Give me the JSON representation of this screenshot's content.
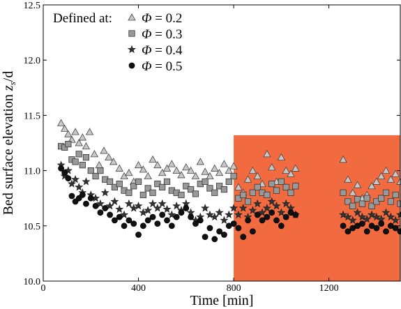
{
  "chart_data": {
    "type": "scatter",
    "xlabel": "Time [min]",
    "ylabel": "Bed surface elevation z_s/d",
    "ylabel_parts": {
      "main": "Bed surface elevation ",
      "var": "z",
      "sub": "s",
      "tail": "/d"
    },
    "xlim": [
      0,
      1500
    ],
    "ylim": [
      10.0,
      12.5
    ],
    "xticks": [
      "0",
      "400",
      "800",
      "1200"
    ],
    "yticks": [
      "10.0",
      "10.5",
      "11.0",
      "11.5",
      "12.0",
      "12.5"
    ],
    "grid": false,
    "legend_position": "top-left",
    "legend_title": "Defined at:",
    "highlight_region": {
      "x": [
        800,
        1500
      ],
      "y": [
        10.0,
        11.32
      ],
      "color": "#f26a3f"
    },
    "series": [
      {
        "name": "Φ = 0.2",
        "symbol_var": "Φ",
        "symbol_val": " = 0.2",
        "marker": "triangle",
        "color": "#c8c8c8",
        "stroke": "#444444",
        "x": [
          75,
          90,
          105,
          120,
          135,
          150,
          165,
          180,
          195,
          215,
          235,
          255,
          275,
          295,
          320,
          340,
          360,
          380,
          400,
          420,
          440,
          460,
          480,
          500,
          520,
          540,
          560,
          580,
          600,
          620,
          640,
          660,
          680,
          700,
          720,
          740,
          760,
          780,
          800,
          820,
          840,
          860,
          880,
          900,
          920,
          940,
          960,
          980,
          1000,
          1020,
          1040,
          1060,
          1260,
          1280,
          1300,
          1320,
          1340,
          1360,
          1380,
          1400,
          1420,
          1440,
          1460,
          1480,
          1500
        ],
        "y": [
          11.43,
          11.38,
          11.33,
          11.28,
          11.35,
          11.25,
          11.3,
          11.22,
          11.35,
          11.15,
          11.05,
          11.18,
          11.12,
          11.08,
          11.02,
          10.95,
          10.98,
          10.9,
          11.05,
          11.01,
          10.95,
          11.1,
          11.05,
          10.98,
          11.02,
          11.06,
          11.0,
          10.96,
          11.03,
          11.0,
          10.95,
          11.08,
          10.99,
          10.95,
          11.02,
          10.98,
          11.06,
          11.0,
          11.04,
          10.85,
          10.8,
          10.92,
          11.0,
          10.95,
          10.88,
          11.15,
          11.03,
          10.9,
          11.12,
          11.0,
          10.97,
          11.02,
          11.1,
          10.92,
          10.8,
          10.87,
          10.75,
          10.78,
          10.86,
          10.9,
          10.95,
          11.0,
          10.92,
          10.97,
          10.9
        ]
      },
      {
        "name": "Φ = 0.3",
        "symbol_var": "Φ",
        "symbol_val": " = 0.3",
        "marker": "square",
        "color": "#999999",
        "stroke": "#333333",
        "x": [
          75,
          90,
          105,
          120,
          135,
          150,
          165,
          180,
          200,
          220,
          240,
          260,
          280,
          300,
          320,
          340,
          360,
          380,
          400,
          420,
          440,
          460,
          480,
          500,
          520,
          540,
          560,
          580,
          600,
          620,
          640,
          660,
          680,
          700,
          720,
          740,
          760,
          780,
          800,
          820,
          840,
          860,
          880,
          900,
          920,
          940,
          960,
          980,
          1000,
          1020,
          1040,
          1060,
          1260,
          1280,
          1300,
          1320,
          1340,
          1360,
          1380,
          1400,
          1420,
          1440,
          1460,
          1480,
          1500
        ],
        "y": [
          11.22,
          11.21,
          11.24,
          11.1,
          11.08,
          11.15,
          11.05,
          11.12,
          11.0,
          10.95,
          11.0,
          10.92,
          10.9,
          10.85,
          10.88,
          10.82,
          10.8,
          10.86,
          10.9,
          10.78,
          10.84,
          10.8,
          10.88,
          10.85,
          10.9,
          10.82,
          10.8,
          10.78,
          10.86,
          10.83,
          10.79,
          10.88,
          10.9,
          10.84,
          10.8,
          10.86,
          10.83,
          10.9,
          10.95,
          10.75,
          10.78,
          10.72,
          10.8,
          10.85,
          10.8,
          10.78,
          10.88,
          10.82,
          10.9,
          10.85,
          10.8,
          10.86,
          10.8,
          10.72,
          10.68,
          10.74,
          10.7,
          10.75,
          10.68,
          10.72,
          10.75,
          10.8,
          10.72,
          10.78,
          10.7
        ]
      },
      {
        "name": "Φ = 0.4",
        "symbol_var": "Φ",
        "symbol_val": " = 0.4",
        "marker": "star",
        "color": "#333333",
        "stroke": "#222222",
        "x": [
          75,
          90,
          105,
          120,
          135,
          150,
          165,
          180,
          200,
          220,
          240,
          260,
          280,
          300,
          320,
          340,
          360,
          380,
          400,
          420,
          440,
          460,
          480,
          500,
          520,
          540,
          560,
          580,
          600,
          620,
          640,
          660,
          680,
          700,
          720,
          740,
          760,
          780,
          800,
          820,
          840,
          860,
          880,
          900,
          920,
          940,
          960,
          980,
          1000,
          1020,
          1040,
          1060,
          1260,
          1280,
          1300,
          1320,
          1340,
          1360,
          1380,
          1400,
          1420,
          1440,
          1460,
          1480,
          1500
        ],
        "y": [
          11.05,
          10.95,
          11.0,
          10.88,
          10.92,
          10.85,
          10.8,
          10.9,
          10.78,
          10.75,
          10.7,
          10.8,
          10.68,
          10.72,
          10.65,
          10.6,
          10.7,
          10.66,
          10.68,
          10.62,
          10.64,
          10.7,
          10.66,
          10.7,
          10.65,
          10.6,
          10.68,
          10.64,
          10.7,
          10.62,
          10.55,
          10.58,
          10.66,
          10.6,
          10.58,
          10.62,
          10.55,
          10.6,
          10.66,
          10.6,
          10.66,
          10.58,
          10.64,
          10.7,
          10.62,
          10.66,
          10.72,
          10.68,
          10.62,
          10.7,
          10.66,
          10.6,
          10.6,
          10.58,
          10.55,
          10.62,
          10.58,
          10.56,
          10.6,
          10.58,
          10.56,
          10.62,
          10.58,
          10.55,
          10.6
        ]
      },
      {
        "name": "Φ = 0.5",
        "symbol_var": "Φ",
        "symbol_val": " = 0.5",
        "marker": "circle",
        "color": "#111111",
        "stroke": "#000000",
        "x": [
          75,
          90,
          105,
          120,
          135,
          150,
          165,
          180,
          200,
          220,
          240,
          260,
          280,
          300,
          320,
          340,
          360,
          380,
          400,
          420,
          440,
          460,
          480,
          500,
          520,
          540,
          560,
          580,
          600,
          620,
          640,
          660,
          680,
          700,
          720,
          740,
          760,
          780,
          800,
          820,
          840,
          860,
          880,
          900,
          920,
          940,
          960,
          980,
          1000,
          1020,
          1040,
          1060,
          1260,
          1280,
          1300,
          1320,
          1340,
          1360,
          1380,
          1400,
          1420,
          1440,
          1460,
          1480,
          1500
        ],
        "y": [
          11.02,
          10.98,
          10.93,
          10.77,
          10.72,
          10.75,
          10.78,
          10.7,
          10.75,
          10.68,
          10.62,
          10.66,
          10.6,
          10.55,
          10.58,
          10.5,
          10.55,
          10.52,
          10.42,
          10.5,
          10.55,
          10.58,
          10.52,
          10.6,
          10.55,
          10.5,
          10.58,
          10.62,
          10.66,
          10.58,
          10.52,
          10.55,
          10.4,
          10.48,
          10.38,
          10.45,
          10.42,
          10.5,
          10.52,
          10.48,
          10.4,
          10.55,
          10.45,
          10.6,
          10.55,
          10.58,
          10.62,
          10.55,
          10.5,
          10.58,
          10.62,
          10.6,
          10.5,
          10.45,
          10.48,
          10.5,
          10.52,
          10.45,
          10.5,
          10.48,
          10.52,
          10.45,
          10.5,
          10.48,
          10.45
        ]
      }
    ]
  }
}
